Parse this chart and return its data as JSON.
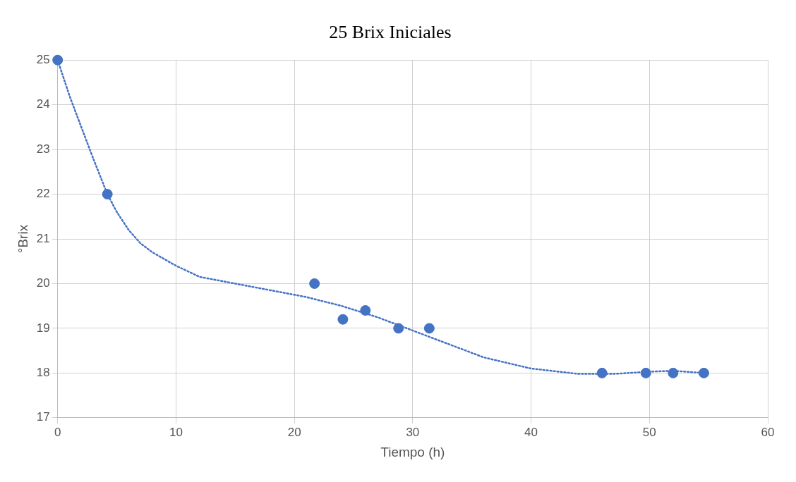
{
  "chart_data": {
    "type": "scatter",
    "title": "25 Brix Iniciales",
    "xlabel": "Tiempo (h)",
    "ylabel": "°Brix",
    "xlim": [
      0,
      60
    ],
    "xticks": [
      0,
      10,
      20,
      30,
      40,
      50,
      60
    ],
    "ylim": [
      17,
      25
    ],
    "yticks": [
      17,
      18,
      19,
      20,
      21,
      22,
      23,
      24,
      25
    ],
    "grid": true,
    "legend": false,
    "marker": "circle",
    "series": [
      {
        "color": "#4472c4",
        "x": [
          0,
          4.2,
          21.7,
          24.1,
          26,
          28.8,
          31.4,
          46,
          49.7,
          52,
          54.6
        ],
        "values": [
          25,
          22,
          20,
          19.2,
          19.4,
          19,
          19,
          18,
          18,
          18,
          18
        ]
      },
      {
        "type": "line",
        "color": "#4472c4",
        "line_style": "dotted",
        "marker": "none",
        "x": [
          0,
          1,
          2,
          3,
          4.2,
          5,
          6,
          7,
          8,
          9,
          10,
          12,
          15,
          18,
          21,
          24,
          27,
          30,
          33,
          36,
          40,
          44,
          47,
          50,
          52,
          54.6
        ],
        "values": [
          25,
          24.2,
          23.5,
          22.8,
          22,
          21.6,
          21.2,
          20.9,
          20.7,
          20.55,
          20.4,
          20.15,
          20,
          19.85,
          19.7,
          19.5,
          19.25,
          18.95,
          18.65,
          18.35,
          18.1,
          17.98,
          17.98,
          18.03,
          18.05,
          18
        ]
      }
    ]
  }
}
